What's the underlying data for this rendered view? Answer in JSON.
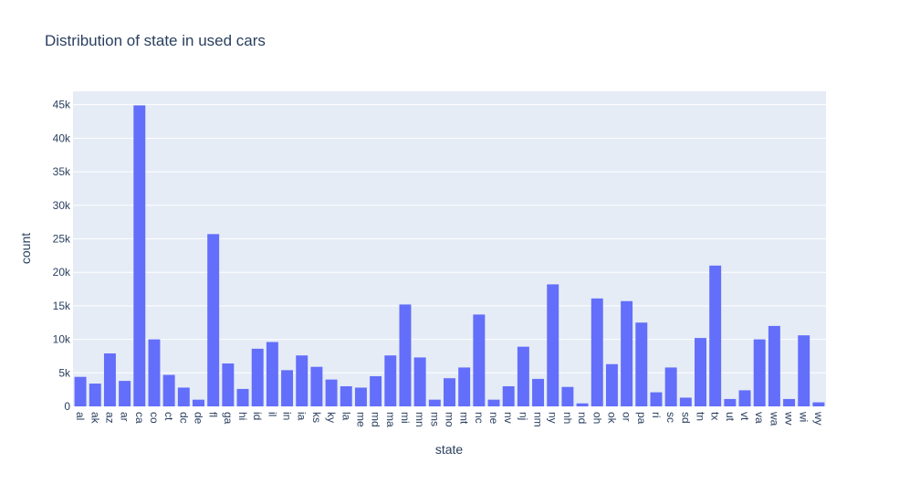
{
  "chart_data": {
    "type": "bar",
    "title": "Distribution of state in used cars",
    "xlabel": "state",
    "ylabel": "count",
    "ylim": [
      0,
      47000
    ],
    "y_ticks": [
      0,
      5000,
      10000,
      15000,
      20000,
      25000,
      30000,
      35000,
      40000,
      45000
    ],
    "y_tick_labels": [
      "0",
      "5k",
      "10k",
      "15k",
      "20k",
      "25k",
      "30k",
      "35k",
      "40k",
      "45k"
    ],
    "grid": true,
    "bar_color": "#636efa",
    "plot_background": "#e5ecf6",
    "categories": [
      "al",
      "ak",
      "az",
      "ar",
      "ca",
      "co",
      "ct",
      "dc",
      "de",
      "fl",
      "ga",
      "hi",
      "id",
      "il",
      "in",
      "ia",
      "ks",
      "ky",
      "la",
      "me",
      "md",
      "ma",
      "mi",
      "mn",
      "ms",
      "mo",
      "mt",
      "nc",
      "ne",
      "nv",
      "nj",
      "nm",
      "ny",
      "nh",
      "nd",
      "oh",
      "ok",
      "or",
      "pa",
      "ri",
      "sc",
      "sd",
      "tn",
      "tx",
      "ut",
      "vt",
      "va",
      "wa",
      "wv",
      "wi",
      "wy"
    ],
    "values": [
      4400,
      3400,
      7900,
      3800,
      44900,
      10000,
      4700,
      2800,
      1000,
      25700,
      6400,
      2600,
      8600,
      9600,
      5400,
      7600,
      5900,
      4000,
      3000,
      2800,
      4500,
      7600,
      15200,
      7300,
      1000,
      4200,
      5800,
      13700,
      1000,
      3000,
      8900,
      4100,
      18200,
      2900,
      450,
      16100,
      6300,
      15700,
      12500,
      2100,
      5800,
      1300,
      10200,
      21000,
      1100,
      2400,
      10000,
      12000,
      1100,
      10600,
      600
    ]
  }
}
